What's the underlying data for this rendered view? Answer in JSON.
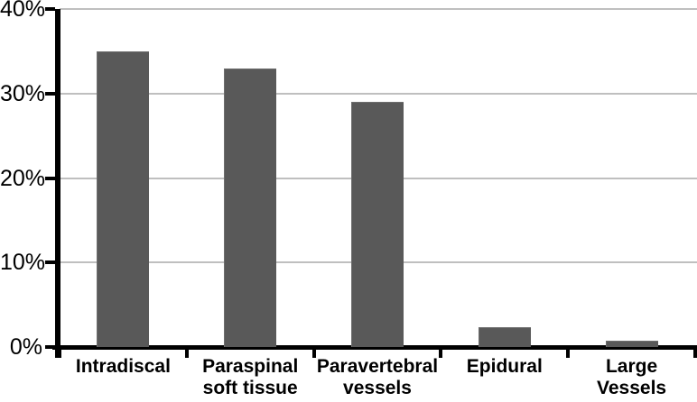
{
  "chart_data": {
    "type": "bar",
    "title": "",
    "xlabel": "",
    "ylabel": "",
    "categories": [
      "Intradiscal",
      "Paraspinal soft tissue",
      "Paravertebral vessels",
      "Epidural",
      "Large Vessels"
    ],
    "category_label_lines": [
      [
        "Intradiscal"
      ],
      [
        "Paraspinal",
        "soft tissue"
      ],
      [
        "Paravertebral",
        "vessels"
      ],
      [
        "Epidural"
      ],
      [
        "Large",
        "Vessels"
      ]
    ],
    "values": [
      35,
      33,
      29,
      2.3,
      0.7
    ],
    "yticks": [
      0,
      10,
      20,
      30,
      40
    ],
    "ytick_labels": [
      "0%",
      "10%",
      "20%",
      "30%",
      "40%"
    ],
    "ylim": [
      0,
      40
    ],
    "grid": true,
    "legend": false,
    "layout": {
      "gridlines_horizontal": true,
      "legend_position": "none"
    },
    "colors": {
      "bar": "#595959",
      "gridline": "#bfbfbf",
      "axis": "#000000",
      "text": "#000000",
      "background": "#ffffff"
    }
  }
}
